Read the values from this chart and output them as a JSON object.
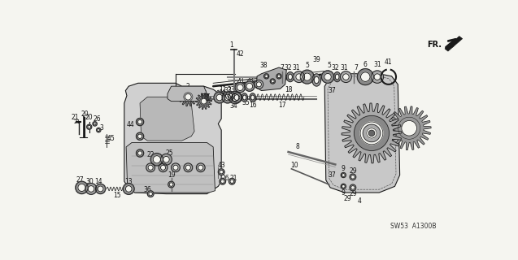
{
  "background_color": "#f5f5f0",
  "diagram_code": "SW53  A1300B",
  "fr_label": "FR.",
  "line_color": "#1a1a1a",
  "gray_fill": "#888888",
  "light_gray": "#cccccc",
  "dark_gray": "#444444"
}
